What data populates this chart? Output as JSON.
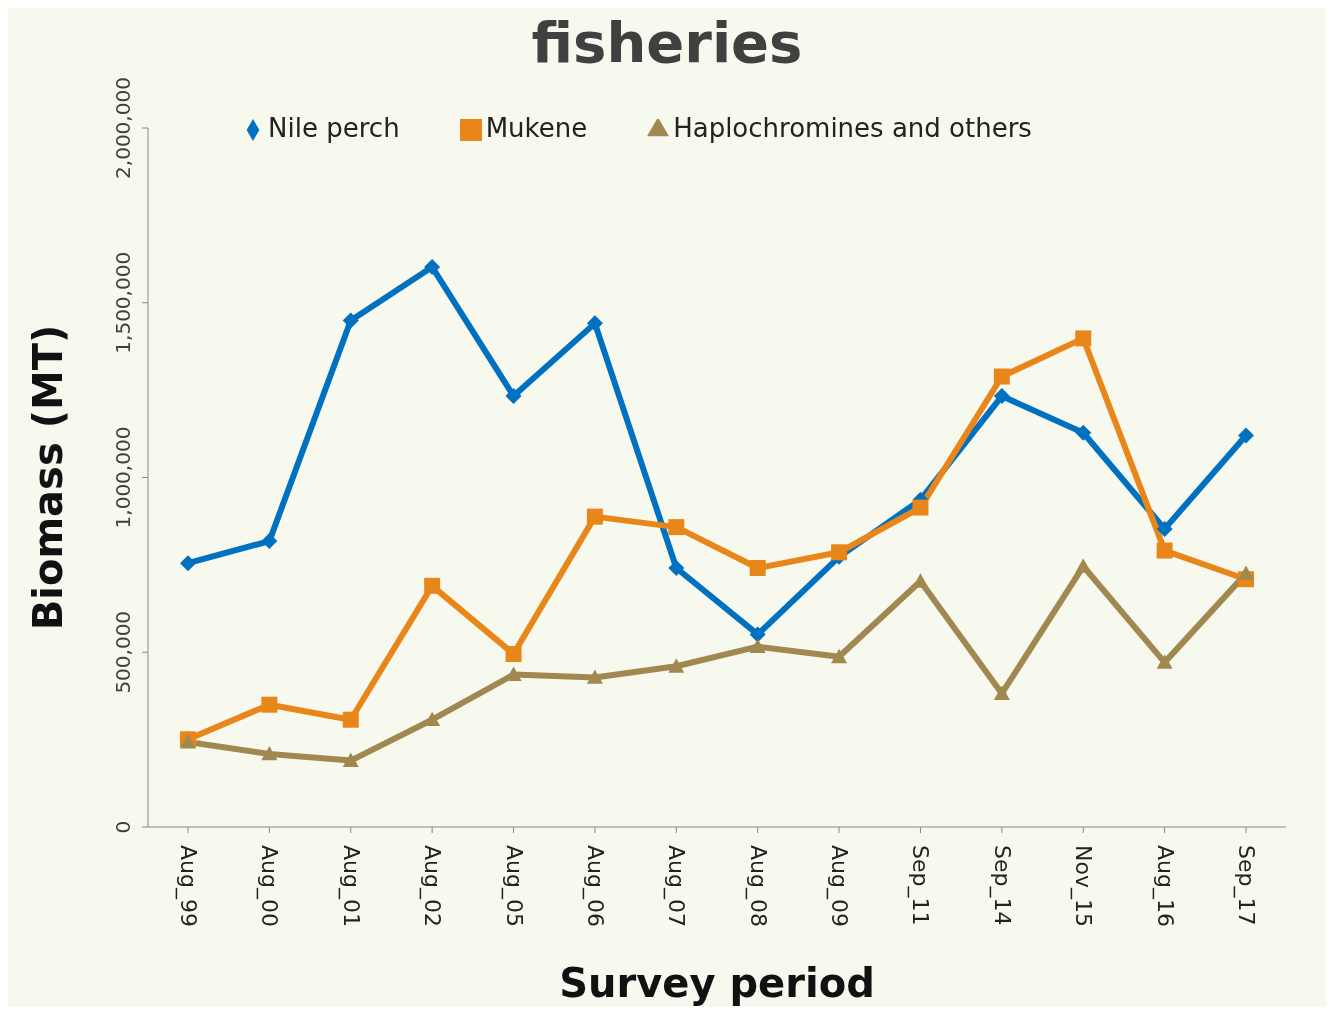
{
  "chart_data": {
    "type": "line",
    "title": "fisheries",
    "xlabel": "Survey period",
    "ylabel": "Biomass (MT)",
    "categories": [
      "Aug_99",
      "Aug_00",
      "Aug_01",
      "Aug_02",
      "Aug_05",
      "Aug_06",
      "Aug_07",
      "Aug_08",
      "Aug_09",
      "Sep_11",
      "Sep_14",
      "Nov_15",
      "Aug_16",
      "Sep_17"
    ],
    "series": [
      {
        "name": "Nile perch",
        "color": "#0070c0",
        "marker": "diamond",
        "values": [
          755000,
          818000,
          1449000,
          1602000,
          1233000,
          1441000,
          741000,
          551000,
          773000,
          936000,
          1233000,
          1128000,
          853000,
          1120000
        ]
      },
      {
        "name": "Mukene",
        "color": "#e8861a",
        "marker": "square",
        "values": [
          251000,
          350000,
          307000,
          690000,
          495000,
          888000,
          858000,
          741000,
          786000,
          914000,
          1289000,
          1398000,
          791000,
          709000
        ]
      },
      {
        "name": "Haplochromines and others",
        "color": "#a08850",
        "marker": "triangle",
        "values": [
          243000,
          209000,
          190000,
          307000,
          436000,
          428000,
          460000,
          516000,
          487000,
          703000,
          382000,
          746000,
          471000,
          725000
        ]
      }
    ],
    "ylim": [
      0,
      2000000
    ],
    "yticks": [
      0,
      {
        "value": 500000,
        "label": "500,000"
      },
      {
        "value": 1000000,
        "label": "1,000,000"
      },
      {
        "value": 1500000,
        "label": "1,500,000"
      },
      {
        "value": 2000000,
        "label": "2,000,000"
      }
    ],
    "legend": "top"
  }
}
